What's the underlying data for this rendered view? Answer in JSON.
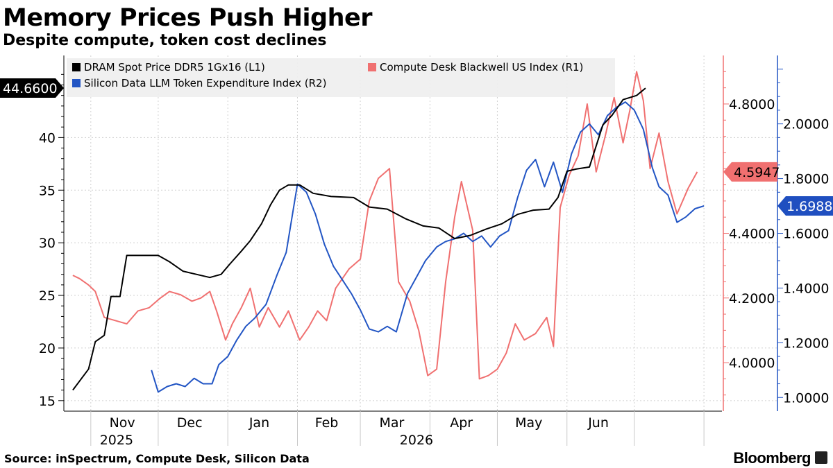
{
  "header": {
    "title": "Memory Prices Push Higher",
    "subtitle": "Despite compute, token cost declines"
  },
  "footer": {
    "source": "Source: inSpectrum, Compute Desk, Silicon Data",
    "brand": "Bloomberg"
  },
  "chart_data": {
    "type": "line",
    "x_labels": [
      "Nov",
      "Dec",
      "Jan",
      "Feb",
      "Mar",
      "Apr",
      "May",
      "Jun"
    ],
    "year_labels": [
      "2025",
      "2026"
    ],
    "legend_placement": "top-left",
    "grid": true,
    "axes": {
      "L1": {
        "ticks": [
          "15",
          "20",
          "25",
          "30",
          "35",
          "40"
        ],
        "range": [
          14.0,
          47.8
        ],
        "color": "#000000"
      },
      "R1": {
        "ticks": [
          "4.0000",
          "4.2000",
          "4.4000",
          "4.6000",
          "4.8000"
        ],
        "range": [
          3.85,
          4.95
        ],
        "color": "#f07070"
      },
      "R2": {
        "ticks": [
          "1.0000",
          "1.2000",
          "1.4000",
          "1.6000",
          "1.8000",
          "2.0000"
        ],
        "range": [
          0.95,
          2.25
        ],
        "color": "#2255c4"
      }
    },
    "series": [
      {
        "name": "DRAM Spot Price DDR5 1Gx16 (L1)",
        "axis": "L1",
        "color": "#000000",
        "last_value_label": "44.6600",
        "points": [
          [
            "2025-10-24",
            16.0
          ],
          [
            "2025-10-31",
            18.0
          ],
          [
            "2025-11-03",
            20.6
          ],
          [
            "2025-11-07",
            21.2
          ],
          [
            "2025-11-10",
            24.9
          ],
          [
            "2025-11-14",
            24.9
          ],
          [
            "2025-11-17",
            28.8
          ],
          [
            "2025-11-21",
            28.8
          ],
          [
            "2025-12-01",
            28.8
          ],
          [
            "2025-12-06",
            28.2
          ],
          [
            "2025-12-12",
            27.3
          ],
          [
            "2025-12-18",
            27.0
          ],
          [
            "2025-12-24",
            26.7
          ],
          [
            "2025-12-29",
            27.0
          ],
          [
            "2026-01-02",
            28.0
          ],
          [
            "2026-01-07",
            29.2
          ],
          [
            "2026-01-11",
            30.2
          ],
          [
            "2026-01-16",
            31.8
          ],
          [
            "2026-01-20",
            33.6
          ],
          [
            "2026-01-24",
            35.0
          ],
          [
            "2026-01-28",
            35.5
          ],
          [
            "2026-02-02",
            35.5
          ],
          [
            "2026-02-08",
            34.7
          ],
          [
            "2026-02-16",
            34.4
          ],
          [
            "2026-02-26",
            34.3
          ],
          [
            "2026-03-05",
            33.4
          ],
          [
            "2026-03-13",
            33.2
          ],
          [
            "2026-03-21",
            32.3
          ],
          [
            "2026-03-29",
            31.6
          ],
          [
            "2026-04-05",
            31.4
          ],
          [
            "2026-04-12",
            30.4
          ],
          [
            "2026-04-19",
            30.7
          ],
          [
            "2026-04-26",
            31.3
          ],
          [
            "2026-05-03",
            31.8
          ],
          [
            "2026-05-10",
            32.7
          ],
          [
            "2026-05-17",
            33.1
          ],
          [
            "2026-05-24",
            33.2
          ],
          [
            "2026-05-28",
            34.3
          ],
          [
            "2026-06-01",
            36.8
          ],
          [
            "2026-06-05",
            37.0
          ],
          [
            "2026-06-11",
            37.2
          ],
          [
            "2026-06-17",
            41.2
          ],
          [
            "2026-06-21",
            42.1
          ],
          [
            "2026-06-26",
            43.6
          ],
          [
            "2026-07-02",
            44.0
          ],
          [
            "2026-07-06",
            44.7
          ]
        ]
      },
      {
        "name": "Compute Desk Blackwell US Index  (R1)",
        "axis": "R1",
        "color": "#f07070",
        "last_value_label": "4.5947",
        "points": [
          [
            "2025-10-24",
            4.27
          ],
          [
            "2025-10-27",
            4.26
          ],
          [
            "2025-10-31",
            4.24
          ],
          [
            "2025-11-03",
            4.22
          ],
          [
            "2025-11-07",
            4.14
          ],
          [
            "2025-11-12",
            4.13
          ],
          [
            "2025-11-17",
            4.12
          ],
          [
            "2025-11-22",
            4.16
          ],
          [
            "2025-11-27",
            4.17
          ],
          [
            "2025-12-02",
            4.2
          ],
          [
            "2025-12-06",
            4.22
          ],
          [
            "2025-12-11",
            4.21
          ],
          [
            "2025-12-16",
            4.19
          ],
          [
            "2025-12-20",
            4.2
          ],
          [
            "2025-12-24",
            4.22
          ],
          [
            "2025-12-27",
            4.16
          ],
          [
            "2025-12-31",
            4.07
          ],
          [
            "2026-01-03",
            4.12
          ],
          [
            "2026-01-07",
            4.17
          ],
          [
            "2026-01-11",
            4.23
          ],
          [
            "2026-01-15",
            4.11
          ],
          [
            "2026-01-19",
            4.17
          ],
          [
            "2026-01-24",
            4.11
          ],
          [
            "2026-01-28",
            4.16
          ],
          [
            "2026-02-02",
            4.07
          ],
          [
            "2026-02-06",
            4.11
          ],
          [
            "2026-02-10",
            4.16
          ],
          [
            "2026-02-14",
            4.13
          ],
          [
            "2026-02-18",
            4.23
          ],
          [
            "2026-02-24",
            4.29
          ],
          [
            "2026-03-01",
            4.32
          ],
          [
            "2026-03-05",
            4.5
          ],
          [
            "2026-03-09",
            4.57
          ],
          [
            "2026-03-14",
            4.6
          ],
          [
            "2026-03-18",
            4.25
          ],
          [
            "2026-03-23",
            4.19
          ],
          [
            "2026-03-27",
            4.1
          ],
          [
            "2026-03-31",
            3.96
          ],
          [
            "2026-04-04",
            3.98
          ],
          [
            "2026-04-08",
            4.25
          ],
          [
            "2026-04-12",
            4.45
          ],
          [
            "2026-04-15",
            4.56
          ],
          [
            "2026-04-20",
            4.41
          ],
          [
            "2026-04-23",
            3.95
          ],
          [
            "2026-04-27",
            3.96
          ],
          [
            "2026-05-01",
            3.98
          ],
          [
            "2026-05-05",
            4.03
          ],
          [
            "2026-05-09",
            4.12
          ],
          [
            "2026-05-13",
            4.07
          ],
          [
            "2026-05-18",
            4.09
          ],
          [
            "2026-05-23",
            4.14
          ],
          [
            "2026-05-26",
            4.05
          ],
          [
            "2026-05-29",
            4.48
          ],
          [
            "2026-06-02",
            4.58
          ],
          [
            "2026-06-06",
            4.64
          ],
          [
            "2026-06-10",
            4.8
          ],
          [
            "2026-06-14",
            4.59
          ],
          [
            "2026-06-18",
            4.7
          ],
          [
            "2026-06-22",
            4.82
          ],
          [
            "2026-06-26",
            4.68
          ],
          [
            "2026-06-29",
            4.78
          ],
          [
            "2026-07-02",
            4.9
          ],
          [
            "2026-07-05",
            4.81
          ],
          [
            "2026-07-08",
            4.6
          ],
          [
            "2026-07-12",
            4.71
          ],
          [
            "2026-07-16",
            4.56
          ],
          [
            "2026-07-20",
            4.46
          ],
          [
            "2026-07-25",
            4.54
          ],
          [
            "2026-07-29",
            4.59
          ]
        ]
      },
      {
        "name": "Silicon Data LLM Token Expenditure Index (R2)",
        "axis": "R2",
        "color": "#2255c4",
        "last_value_label": "1.6988",
        "points": [
          [
            "2025-11-28",
            1.1
          ],
          [
            "2025-12-01",
            1.02
          ],
          [
            "2025-12-05",
            1.04
          ],
          [
            "2025-12-09",
            1.05
          ],
          [
            "2025-12-13",
            1.04
          ],
          [
            "2025-12-17",
            1.07
          ],
          [
            "2025-12-21",
            1.05
          ],
          [
            "2025-12-25",
            1.05
          ],
          [
            "2025-12-28",
            1.12
          ],
          [
            "2026-01-01",
            1.15
          ],
          [
            "2026-01-05",
            1.21
          ],
          [
            "2026-01-09",
            1.26
          ],
          [
            "2026-01-13",
            1.29
          ],
          [
            "2026-01-18",
            1.34
          ],
          [
            "2026-01-23",
            1.45
          ],
          [
            "2026-01-27",
            1.53
          ],
          [
            "2026-02-01",
            1.78
          ],
          [
            "2026-02-05",
            1.75
          ],
          [
            "2026-02-09",
            1.67
          ],
          [
            "2026-02-13",
            1.56
          ],
          [
            "2026-02-17",
            1.48
          ],
          [
            "2026-02-21",
            1.43
          ],
          [
            "2026-02-25",
            1.38
          ],
          [
            "2026-03-01",
            1.32
          ],
          [
            "2026-03-05",
            1.25
          ],
          [
            "2026-03-09",
            1.24
          ],
          [
            "2026-03-13",
            1.26
          ],
          [
            "2026-03-17",
            1.24
          ],
          [
            "2026-03-22",
            1.38
          ],
          [
            "2026-03-26",
            1.44
          ],
          [
            "2026-03-30",
            1.5
          ],
          [
            "2026-04-04",
            1.55
          ],
          [
            "2026-04-08",
            1.57
          ],
          [
            "2026-04-12",
            1.58
          ],
          [
            "2026-04-16",
            1.6
          ],
          [
            "2026-04-20",
            1.57
          ],
          [
            "2026-04-24",
            1.59
          ],
          [
            "2026-04-28",
            1.55
          ],
          [
            "2026-05-02",
            1.59
          ],
          [
            "2026-05-06",
            1.61
          ],
          [
            "2026-05-10",
            1.73
          ],
          [
            "2026-05-14",
            1.83
          ],
          [
            "2026-05-18",
            1.87
          ],
          [
            "2026-05-22",
            1.77
          ],
          [
            "2026-05-26",
            1.86
          ],
          [
            "2026-05-30",
            1.75
          ],
          [
            "2026-06-03",
            1.89
          ],
          [
            "2026-06-07",
            1.97
          ],
          [
            "2026-06-11",
            2.0
          ],
          [
            "2026-06-15",
            1.96
          ],
          [
            "2026-06-19",
            2.03
          ],
          [
            "2026-06-23",
            2.06
          ],
          [
            "2026-06-27",
            2.08
          ],
          [
            "2026-07-01",
            2.05
          ],
          [
            "2026-07-05",
            1.98
          ],
          [
            "2026-07-09",
            1.84
          ],
          [
            "2026-07-12",
            1.77
          ],
          [
            "2026-07-16",
            1.74
          ],
          [
            "2026-07-20",
            1.64
          ],
          [
            "2026-07-24",
            1.66
          ],
          [
            "2026-07-28",
            1.69
          ],
          [
            "2026-08-01",
            1.7
          ]
        ]
      }
    ]
  }
}
